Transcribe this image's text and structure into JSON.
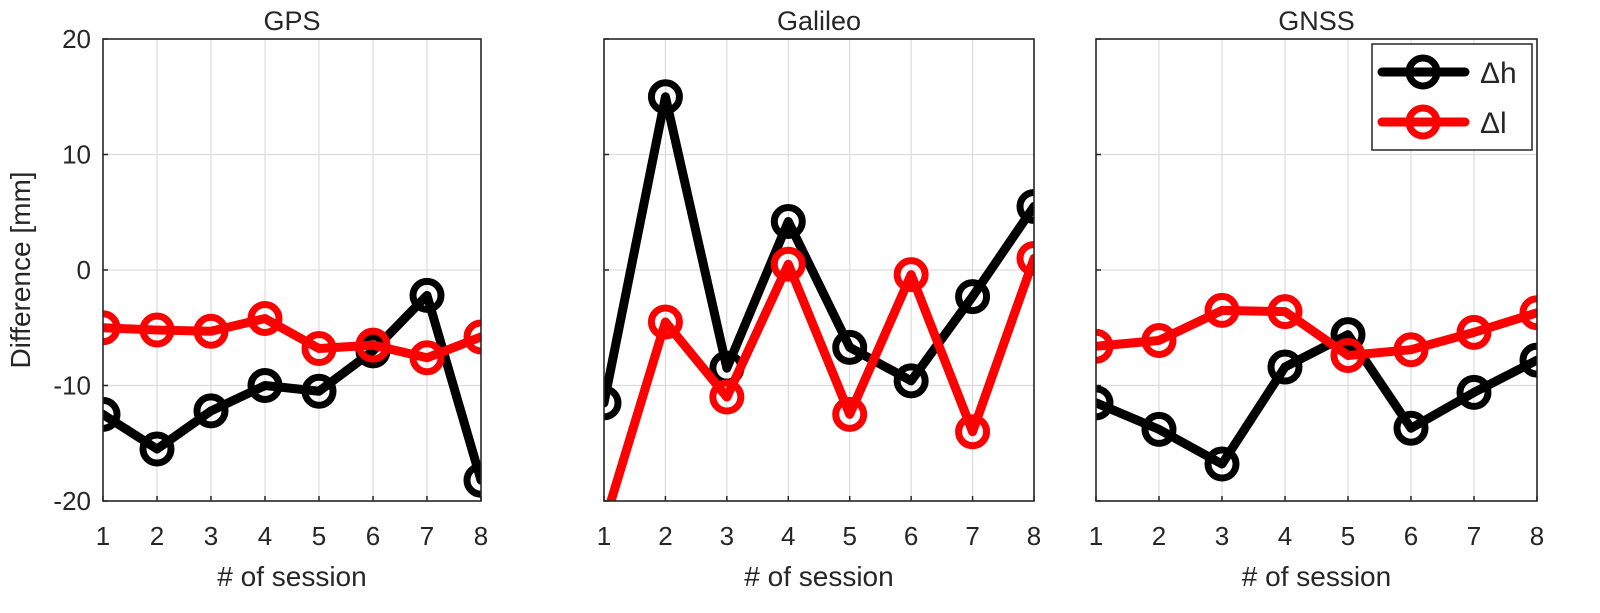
{
  "figure": {
    "ylabel": "Difference [mm]"
  },
  "legend": {
    "placement": "top-right of third panel",
    "entries": [
      {
        "label": "Δh",
        "color": "#000000"
      },
      {
        "label": "Δl",
        "color": "#ff0000"
      }
    ]
  },
  "chart_data": [
    {
      "type": "line",
      "title": "GPS",
      "xlabel": "# of session",
      "ylabel": "Difference [mm]",
      "x": [
        1,
        2,
        3,
        4,
        5,
        6,
        7,
        8
      ],
      "xticks": [
        "1",
        "2",
        "3",
        "4",
        "5",
        "6",
        "7",
        "8"
      ],
      "xlim": [
        1,
        8
      ],
      "ylim": [
        -20,
        20
      ],
      "yticks": [
        "20",
        "10",
        "0",
        "-10",
        "-20"
      ],
      "grid": true,
      "series": [
        {
          "name": "Δh",
          "color": "#000000",
          "values": [
            -12.5,
            -15.5,
            -12.2,
            -10.0,
            -10.5,
            -7.0,
            -2.2,
            -18.2
          ]
        },
        {
          "name": "Δl",
          "color": "#ff0000",
          "values": [
            -5.0,
            -5.2,
            -5.3,
            -4.2,
            -6.8,
            -6.5,
            -7.6,
            -5.8
          ]
        }
      ]
    },
    {
      "type": "line",
      "title": "Galileo",
      "xlabel": "# of session",
      "x": [
        1,
        2,
        3,
        4,
        5,
        6,
        7,
        8
      ],
      "xticks": [
        "1",
        "2",
        "3",
        "4",
        "5",
        "6",
        "7",
        "8"
      ],
      "xlim": [
        1,
        8
      ],
      "ylim": [
        -20,
        20
      ],
      "grid": true,
      "series": [
        {
          "name": "Δh",
          "color": "#000000",
          "values": [
            -11.5,
            15.0,
            -8.5,
            4.2,
            -6.7,
            -9.6,
            -2.3,
            5.5
          ]
        },
        {
          "name": "Δl",
          "color": "#ff0000",
          "values": [
            -22.0,
            -4.5,
            -11.0,
            0.5,
            -12.5,
            -0.4,
            -14.0,
            1.0
          ]
        }
      ]
    },
    {
      "type": "line",
      "title": "GNSS",
      "xlabel": "# of session",
      "x": [
        1,
        2,
        3,
        4,
        5,
        6,
        7,
        8
      ],
      "xticks": [
        "1",
        "2",
        "3",
        "4",
        "5",
        "6",
        "7",
        "8"
      ],
      "xlim": [
        1,
        8
      ],
      "ylim": [
        -20,
        20
      ],
      "grid": true,
      "series": [
        {
          "name": "Δh",
          "color": "#000000",
          "values": [
            -11.5,
            -13.8,
            -16.8,
            -8.4,
            -5.6,
            -13.7,
            -10.6,
            -7.8
          ]
        },
        {
          "name": "Δl",
          "color": "#ff0000",
          "values": [
            -6.6,
            -6.1,
            -3.5,
            -3.6,
            -7.4,
            -6.9,
            -5.4,
            -3.7
          ]
        }
      ]
    }
  ]
}
